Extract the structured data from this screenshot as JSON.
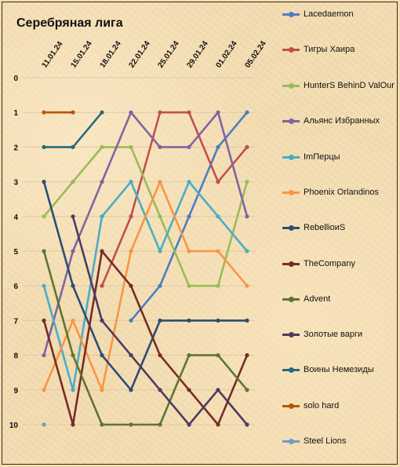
{
  "chart_data": {
    "type": "line",
    "title": "Серебряная лига",
    "xlabel": "",
    "ylabel": "",
    "y_reversed": true,
    "ylim": [
      0,
      10
    ],
    "y_tick_labels": [
      "0",
      "1",
      "2",
      "3",
      "4",
      "5",
      "6",
      "7",
      "8",
      "9",
      "10"
    ],
    "grid": true,
    "legend_position": "right",
    "categories": [
      "11.01.24",
      "15.01.24",
      "18.01.24",
      "22.01.24",
      "25.01.24",
      "29.01.24",
      "01.02.24",
      "05.02.24"
    ],
    "series": [
      {
        "name": "Lacedaemon",
        "color": "#4a7ec0",
        "values": [
          null,
          null,
          null,
          7,
          6,
          4,
          2,
          1
        ]
      },
      {
        "name": "Тигры Хаира",
        "color": "#c0504d",
        "values": [
          null,
          null,
          6,
          4,
          1,
          1,
          3,
          2
        ]
      },
      {
        "name": "HunterS BehinD ValOur",
        "color": "#9bbb59",
        "values": [
          4,
          3,
          2,
          2,
          4,
          6,
          6,
          3
        ]
      },
      {
        "name": "Альянс Избранных",
        "color": "#8064a2",
        "values": [
          8,
          5,
          3,
          1,
          2,
          2,
          1,
          4
        ]
      },
      {
        "name": "ImПерцы",
        "color": "#4bacc6",
        "values": [
          6,
          9,
          4,
          3,
          5,
          3,
          4,
          5
        ]
      },
      {
        "name": "Phoenix Orlandinos",
        "color": "#f79646",
        "values": [
          9,
          7,
          9,
          5,
          3,
          5,
          5,
          6
        ]
      },
      {
        "name": "RebellioиS",
        "color": "#2c4d75",
        "values": [
          3,
          6,
          8,
          9,
          7,
          7,
          7,
          7
        ]
      },
      {
        "name": "TheCompany",
        "color": "#772c2a",
        "values": [
          7,
          10,
          5,
          6,
          8,
          9,
          10,
          8
        ]
      },
      {
        "name": "Advent",
        "color": "#5f7530",
        "values": [
          5,
          8,
          10,
          10,
          10,
          8,
          8,
          9
        ]
      },
      {
        "name": "Золотые варги",
        "color": "#4d3b62",
        "values": [
          null,
          4,
          7,
          8,
          9,
          10,
          9,
          10
        ]
      },
      {
        "name": "Воины Немезиды",
        "color": "#276a7c",
        "values": [
          2,
          2,
          1,
          null,
          null,
          null,
          null,
          null
        ]
      },
      {
        "name": "solo hard",
        "color": "#b65708",
        "values": [
          1,
          1,
          null,
          null,
          null,
          null,
          null,
          null
        ]
      },
      {
        "name": "Steel Lions",
        "color": "#729aca",
        "values": [
          10,
          null,
          null,
          null,
          null,
          null,
          null,
          null
        ]
      }
    ]
  }
}
